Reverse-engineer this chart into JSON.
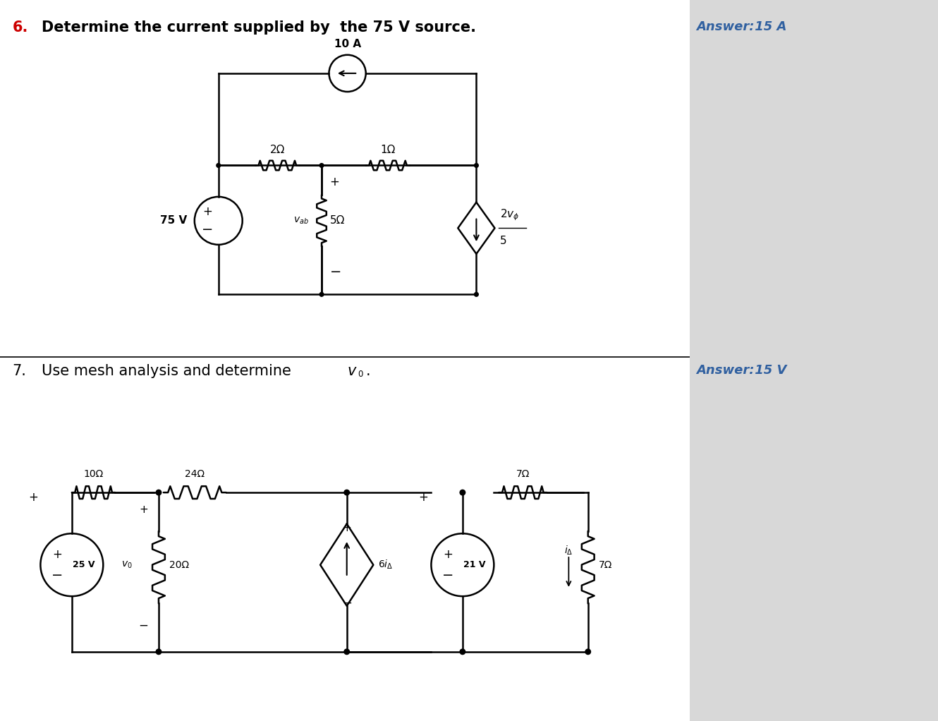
{
  "bg_white": "#ffffff",
  "bg_gray": "#d8d8d8",
  "text_color": "#000000",
  "red_color": "#cc0000",
  "blue_color": "#3060a0",
  "fig_width": 13.3,
  "fig_height": 10.22,
  "p6_number": "6.",
  "p6_question": "Determine the current supplied by  the 75 V source.",
  "p6_ans_label": "Answer:",
  "p6_ans_value": " 15 A",
  "p7_number": "7.",
  "p7_question": "Use mesh analysis and determine ",
  "p7_ans_label": "Answer:",
  "p7_ans_value": " 15 V"
}
